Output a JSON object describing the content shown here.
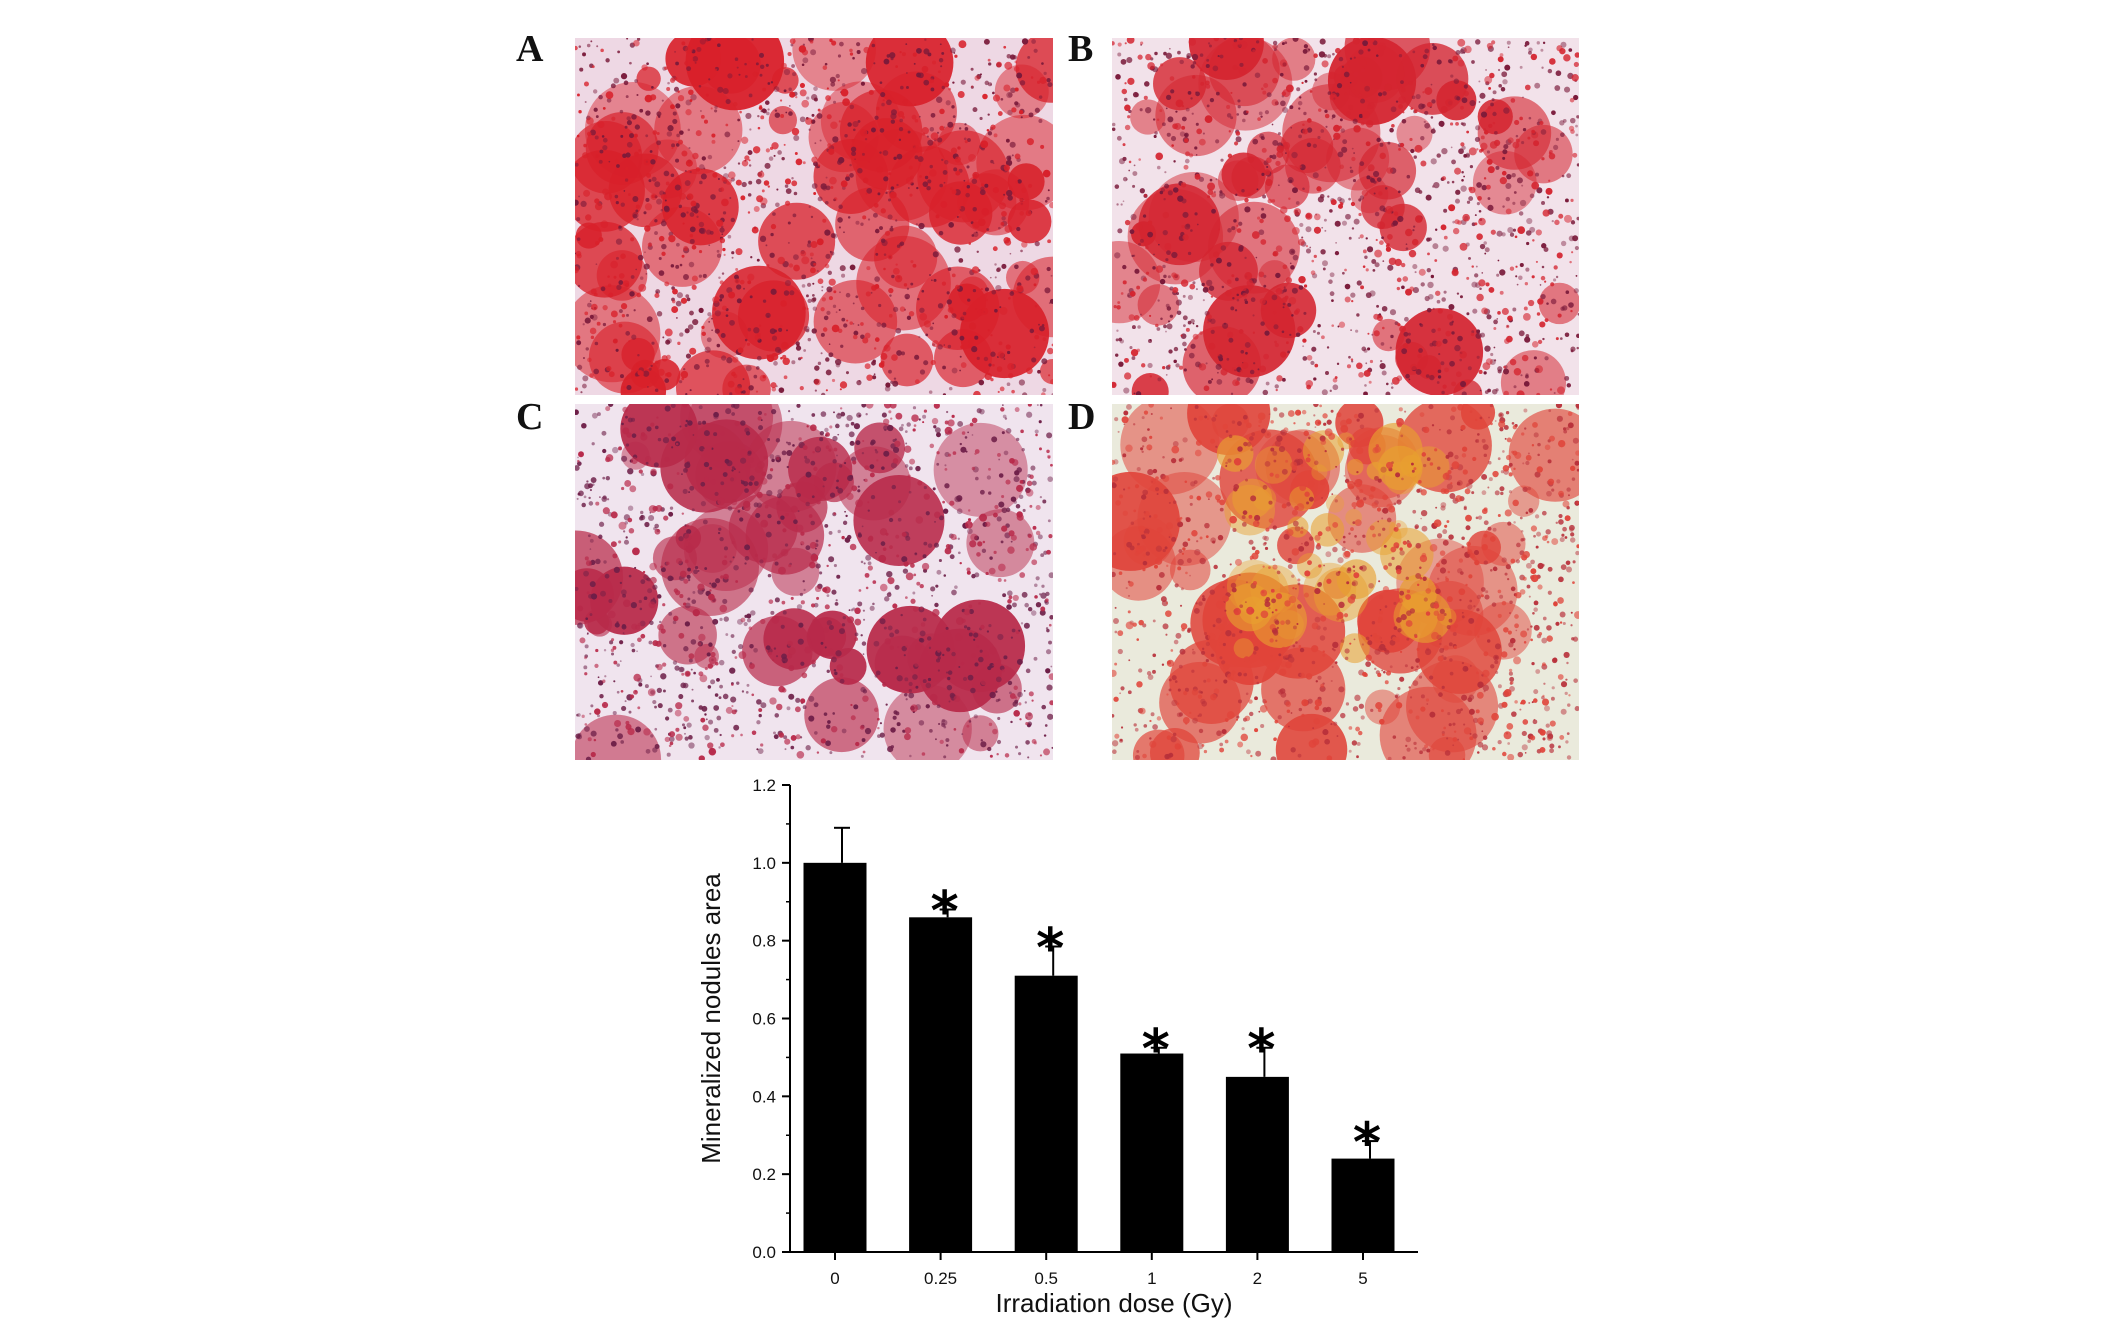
{
  "panels": [
    {
      "label": "A",
      "stain_color": "#d8202a",
      "dark_color": "#7a1a3a",
      "bg_color": "#eed8e4",
      "density": 0.62
    },
    {
      "label": "B",
      "stain_color": "#d42530",
      "dark_color": "#7a1a3a",
      "bg_color": "#f2e2ea",
      "density": 0.48
    },
    {
      "label": "C",
      "stain_color": "#b82a4a",
      "dark_color": "#6e1f48",
      "bg_color": "#f0e4ee",
      "density": 0.38
    },
    {
      "label": "D",
      "stain_color": "#e0443a",
      "dark_color": "#b8303a",
      "bg_color": "#eaeadc",
      "density": 0.4,
      "accent_color": "#e8a030"
    }
  ],
  "chart_data": {
    "type": "bar",
    "categories": [
      "0",
      "0.25",
      "0.5",
      "1",
      "2",
      "5"
    ],
    "values": [
      1.0,
      0.86,
      0.71,
      0.51,
      0.45,
      0.24
    ],
    "errors": [
      0.09,
      0.02,
      0.075,
      0.015,
      0.075,
      0.045
    ],
    "significance": [
      "",
      "*",
      "*",
      "*",
      "*",
      "*"
    ],
    "xlabel": "Irradiation dose (Gy)",
    "ylabel": "Mineralized nodules area",
    "ylim": [
      0,
      1.2
    ],
    "yticks": [
      "0.0",
      "0.2",
      "0.4",
      "0.6",
      "0.8",
      "1.0",
      "1.2"
    ],
    "bar_color": "#000000",
    "grid": false
  }
}
